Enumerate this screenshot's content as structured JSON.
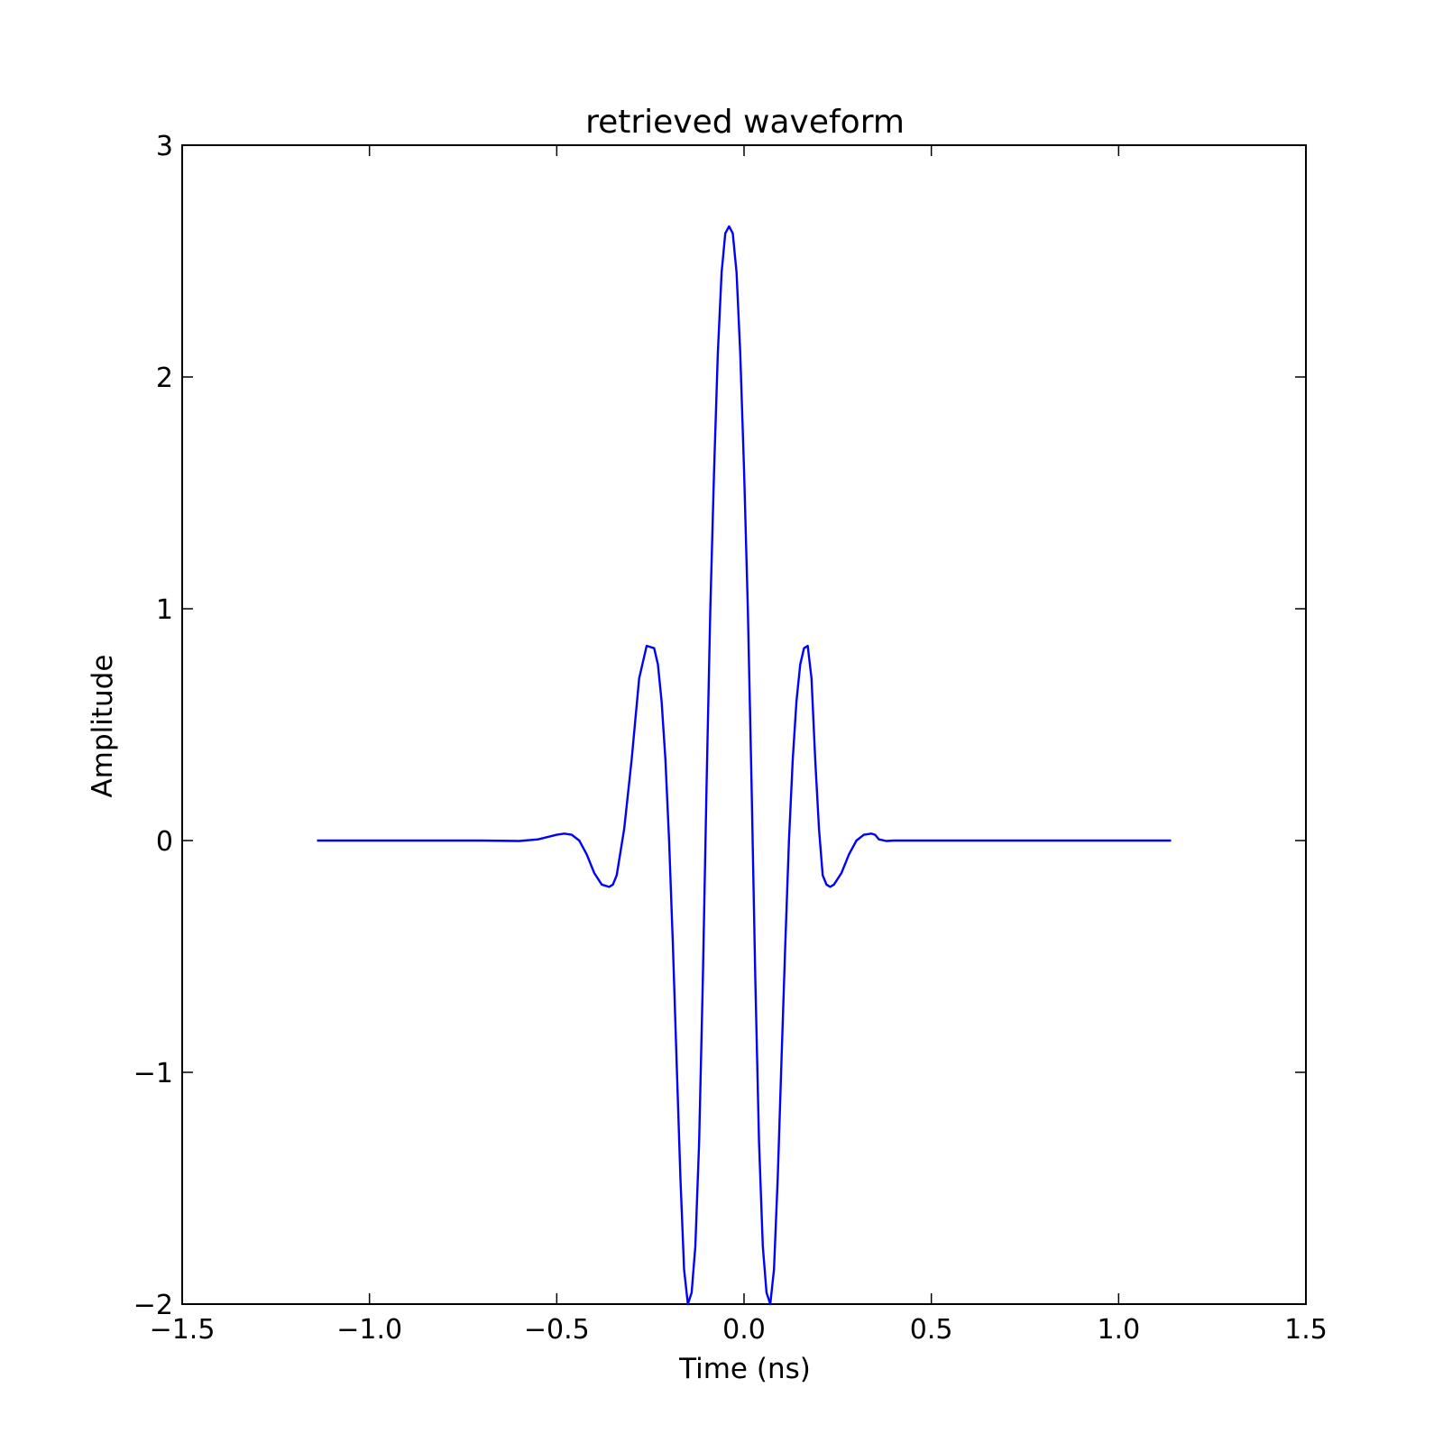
{
  "chart_data": {
    "type": "line",
    "title": "retrieved waveform",
    "xlabel": "Time (ns)",
    "ylabel": "Amplitude",
    "xlim": [
      -1.5,
      1.5
    ],
    "ylim": [
      -2,
      3
    ],
    "xticks": [
      -1.5,
      -1.0,
      -0.5,
      0.0,
      0.5,
      1.0,
      1.5
    ],
    "xtick_labels": [
      "−1.5",
      "−1.0",
      "−0.5",
      "0.0",
      "0.5",
      "1.0",
      "1.5"
    ],
    "yticks": [
      -2,
      -1,
      0,
      1,
      2,
      3
    ],
    "ytick_labels": [
      "−2",
      "−1",
      "0",
      "1",
      "2",
      "3"
    ],
    "grid": false,
    "series": [
      {
        "color": "#0000ff",
        "x": [
          -1.14,
          -0.9,
          -0.7,
          -0.6,
          -0.55,
          -0.5,
          -0.48,
          -0.46,
          -0.44,
          -0.42,
          -0.4,
          -0.38,
          -0.36,
          -0.35,
          -0.34,
          -0.32,
          -0.3,
          -0.28,
          -0.26,
          -0.24,
          -0.23,
          -0.22,
          -0.21,
          -0.2,
          -0.19,
          -0.18,
          -0.17,
          -0.16,
          -0.15,
          -0.14,
          -0.13,
          -0.12,
          -0.11,
          -0.1,
          -0.09,
          -0.08,
          -0.07,
          -0.06,
          -0.05,
          -0.04,
          -0.03,
          -0.02,
          -0.01,
          0.0,
          0.01,
          0.02,
          0.03,
          0.04,
          0.05,
          0.06,
          0.07,
          0.08,
          0.09,
          0.1,
          0.11,
          0.12,
          0.13,
          0.14,
          0.15,
          0.16,
          0.17,
          0.18,
          0.19,
          0.2,
          0.21,
          0.22,
          0.23,
          0.24,
          0.26,
          0.28,
          0.3,
          0.32,
          0.34,
          0.35,
          0.36,
          0.38,
          0.4,
          0.42,
          0.44,
          0.46,
          0.48,
          0.5,
          0.55,
          0.6,
          0.7,
          0.9,
          1.14
        ],
        "y": [
          0.0,
          0.0,
          0.0,
          -0.002,
          0.005,
          0.025,
          0.03,
          0.025,
          0.0,
          -0.06,
          -0.14,
          -0.19,
          -0.2,
          -0.19,
          -0.15,
          0.05,
          0.35,
          0.7,
          0.84,
          0.83,
          0.76,
          0.6,
          0.35,
          0.0,
          -0.45,
          -0.95,
          -1.45,
          -1.85,
          -2.0,
          -1.95,
          -1.75,
          -1.3,
          -0.6,
          0.25,
          1.0,
          1.6,
          2.1,
          2.45,
          2.62,
          2.65,
          2.62,
          2.45,
          2.1,
          1.6,
          1.0,
          0.25,
          -0.6,
          -1.3,
          -1.75,
          -1.95,
          -2.0,
          -1.85,
          -1.45,
          -0.95,
          -0.45,
          0.0,
          0.35,
          0.6,
          0.76,
          0.83,
          0.84,
          0.7,
          0.35,
          0.05,
          -0.15,
          -0.19,
          -0.2,
          -0.19,
          -0.14,
          -0.06,
          0.0,
          0.025,
          0.03,
          0.025,
          0.005,
          -0.002,
          0.0,
          0.0,
          0.0,
          0.0,
          0.0,
          0.0,
          0.0,
          0.0,
          0.0,
          0.0,
          0.0
        ]
      }
    ]
  }
}
